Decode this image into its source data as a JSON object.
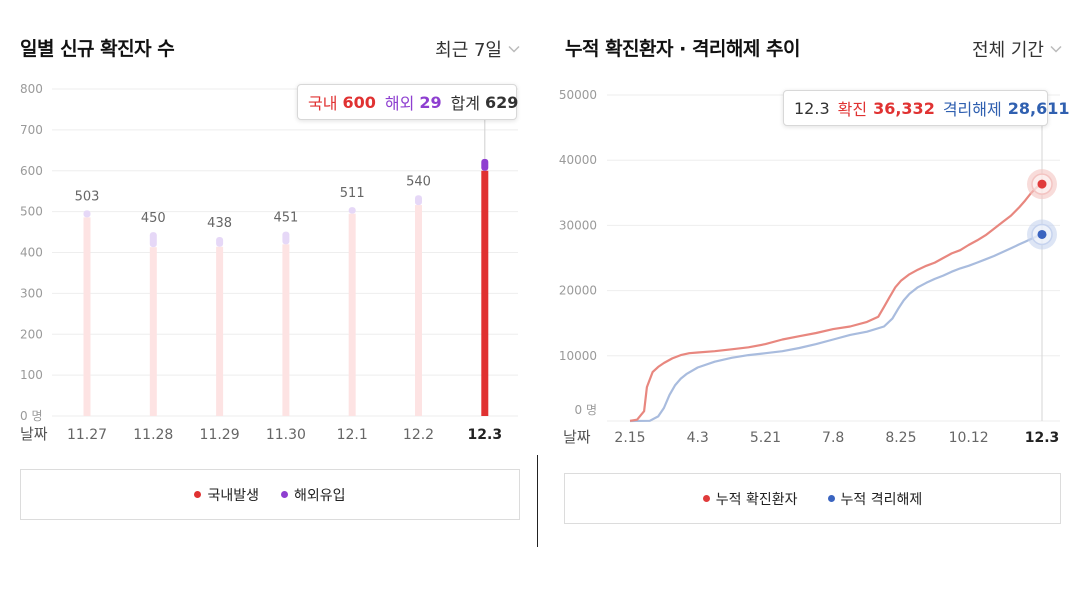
{
  "chart_data": [
    {
      "type": "bar",
      "title": "일별 신규 확진자 수",
      "filter_label": "최근 7일",
      "xlabel": "날짜",
      "ylabel": "",
      "ylim": [
        0,
        800
      ],
      "y_ticks": [
        "0 명",
        "100",
        "200",
        "300",
        "400",
        "500",
        "600",
        "700",
        "800"
      ],
      "y_tick_values": [
        0,
        100,
        200,
        300,
        400,
        500,
        600,
        700,
        800
      ],
      "categories": [
        "11.27",
        "11.28",
        "11.29",
        "11.30",
        "12.1",
        "12.2",
        "12.3"
      ],
      "totals": [
        503,
        450,
        438,
        451,
        511,
        540,
        629
      ],
      "total_labels": [
        "503",
        "450",
        "438",
        "451",
        "511",
        "540",
        ""
      ],
      "series": [
        {
          "name": "국내발생",
          "color": "#e03232",
          "values": [
            486,
            413,
            414,
            420,
            495,
            516,
            600
          ]
        },
        {
          "name": "해외유입",
          "color": "#8e3fd0",
          "values": [
            17,
            37,
            24,
            31,
            16,
            24,
            29
          ]
        }
      ],
      "highlight_index": 6,
      "tooltip": {
        "domestic_label": "국내",
        "domestic_value": "600",
        "overseas_label": "해외",
        "overseas_value": "29",
        "total_label": "합계",
        "total_value": "629"
      },
      "legend": [
        "국내발생",
        "해외유입"
      ],
      "legend_position": "bottom",
      "grid": true
    },
    {
      "type": "line",
      "title": "누적 확진환자 · 격리해제 추이",
      "filter_label": "전체 기간",
      "xlabel": "날짜",
      "ylabel": "",
      "ylim": [
        0,
        50000
      ],
      "y_ticks": [
        "0 명",
        "10000",
        "20000",
        "30000",
        "40000",
        "50000"
      ],
      "y_tick_values": [
        0,
        10000,
        20000,
        30000,
        40000,
        50000
      ],
      "x_ticks": [
        "2.15",
        "4.3",
        "5.21",
        "7.8",
        "8.25",
        "10.12",
        "12.3"
      ],
      "x_tick_days": [
        46,
        94,
        142,
        190,
        238,
        286,
        338
      ],
      "x_range_days": [
        46,
        338
      ],
      "series": [
        {
          "name": "누적 확진환자",
          "color": "#e8877f",
          "x_days": [
            46,
            51,
            56,
            58,
            62,
            66,
            70,
            76,
            82,
            88,
            94,
            106,
            118,
            130,
            142,
            154,
            166,
            178,
            190,
            202,
            214,
            222,
            226,
            230,
            234,
            238,
            244,
            250,
            256,
            262,
            268,
            274,
            280,
            286,
            292,
            298,
            304,
            310,
            316,
            322,
            326,
            330,
            334,
            338
          ],
          "values": [
            30,
            200,
            1500,
            5200,
            7500,
            8300,
            8900,
            9600,
            10100,
            10400,
            10500,
            10700,
            11000,
            11300,
            11800,
            12500,
            13000,
            13500,
            14100,
            14500,
            15200,
            16000,
            17500,
            19000,
            20500,
            21500,
            22500,
            23200,
            23800,
            24300,
            25000,
            25700,
            26200,
            27000,
            27700,
            28500,
            29500,
            30500,
            31500,
            32800,
            33800,
            34900,
            35800,
            36332
          ]
        },
        {
          "name": "누적 격리해제",
          "color": "#a9bcde",
          "x_days": [
            46,
            60,
            66,
            70,
            74,
            78,
            82,
            86,
            94,
            106,
            118,
            130,
            142,
            154,
            166,
            178,
            190,
            202,
            214,
            226,
            232,
            236,
            240,
            244,
            250,
            256,
            262,
            268,
            274,
            280,
            286,
            292,
            298,
            304,
            310,
            316,
            322,
            326,
            330,
            334,
            338
          ],
          "values": [
            0,
            30,
            700,
            2000,
            4000,
            5500,
            6500,
            7200,
            8200,
            9100,
            9700,
            10100,
            10400,
            10700,
            11200,
            11800,
            12500,
            13200,
            13700,
            14500,
            15700,
            17200,
            18500,
            19500,
            20500,
            21200,
            21800,
            22300,
            22900,
            23400,
            23800,
            24300,
            24800,
            25300,
            25900,
            26500,
            27100,
            27500,
            27900,
            28300,
            28611
          ]
        }
      ],
      "tooltip": {
        "date": "12.3",
        "confirmed_label": "확진",
        "confirmed_value": "36,332",
        "released_label": "격리해제",
        "released_value": "28,611"
      },
      "legend": [
        "누적 확진환자",
        "누적 격리해제"
      ],
      "legend_position": "bottom",
      "grid": true
    }
  ],
  "colors": {
    "domestic": "#e03232",
    "overseas": "#8e3fd0",
    "bar_faded": "#fde3e3",
    "overseas_faded": "#e6d8f7",
    "confirmed_line": "#e8877f",
    "released_line": "#a9bcde",
    "confirmed_dot": "#e03b3b",
    "released_dot": "#3a64c0",
    "grid": "#eeeeee",
    "tooltip_blue": "#3060b0",
    "tooltip_red": "#e03232",
    "tooltip_purple": "#8e3fd0"
  },
  "icons": {
    "filter_chevron": "chevron-down-icon"
  }
}
